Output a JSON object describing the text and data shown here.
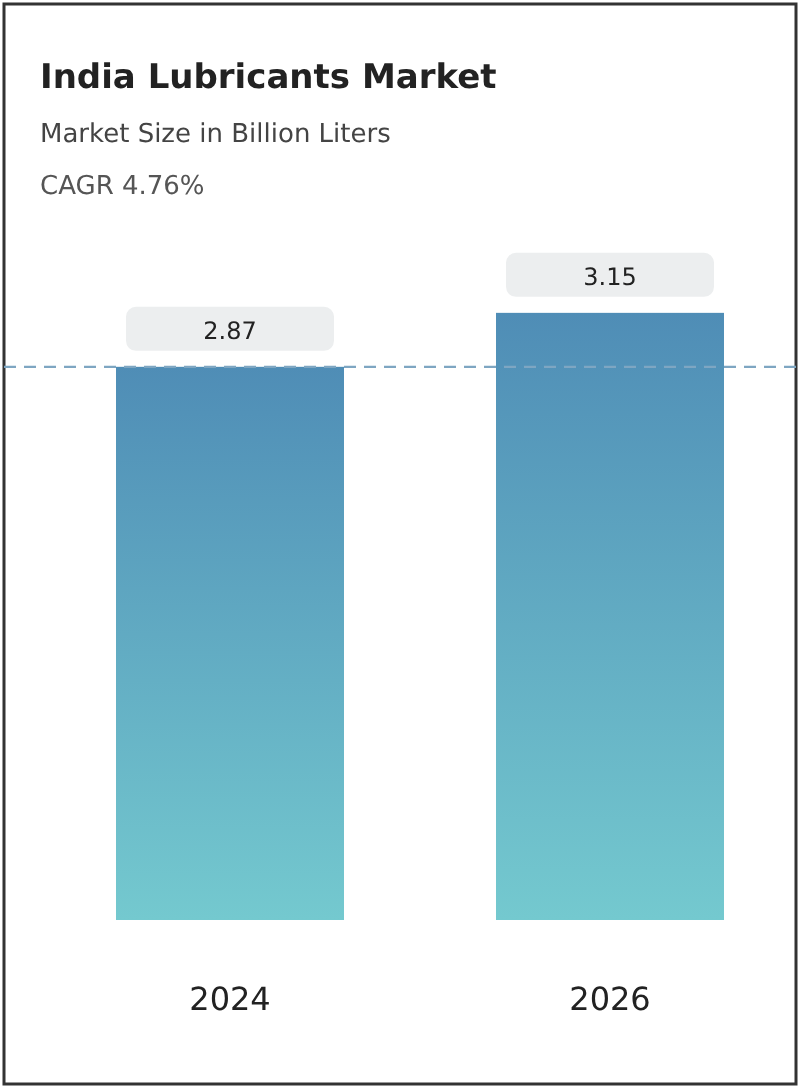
{
  "chart_data": {
    "type": "bar",
    "title": "India Lubricants Market",
    "subtitle": "Market Size in Billion Liters",
    "annotations": [
      "CAGR 4.76%"
    ],
    "categories": [
      "2024",
      "2026"
    ],
    "values": [
      2.87,
      3.15
    ],
    "color": "#4f8db6",
    "data_labels": true,
    "ref_lines": [
      {
        "axis": "y",
        "value": 2.87,
        "line_style": "dashed",
        "color": "#7ea6c2"
      }
    ]
  }
}
